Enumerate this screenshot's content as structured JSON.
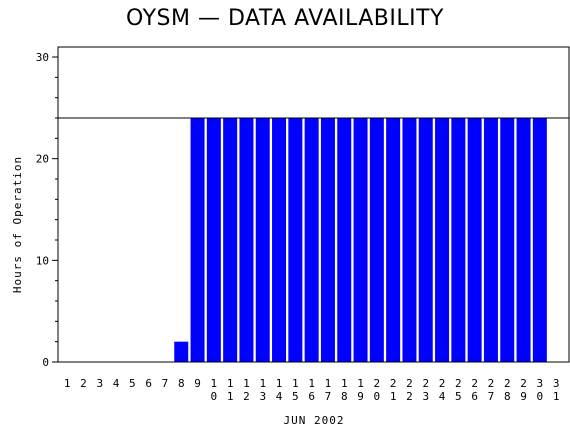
{
  "chart_data": {
    "type": "bar",
    "title": "OYSM — DATA AVAILABILITY",
    "xlabel": "JUN 2002",
    "ylabel": "Hours of Operation",
    "ylim": [
      0,
      30
    ],
    "yticks": [
      0,
      10,
      20,
      30
    ],
    "reference_line": 24,
    "bar_color": "#0000ff",
    "categories": [
      "1",
      "2",
      "3",
      "4",
      "5",
      "6",
      "7",
      "8",
      "9",
      "10",
      "11",
      "12",
      "13",
      "14",
      "15",
      "16",
      "17",
      "18",
      "19",
      "20",
      "21",
      "22",
      "23",
      "24",
      "25",
      "26",
      "27",
      "28",
      "29",
      "30",
      "31"
    ],
    "values": [
      0,
      0,
      0,
      0,
      0,
      0,
      0,
      2,
      24,
      24,
      24,
      24,
      24,
      24,
      24,
      24,
      24,
      24,
      24,
      24,
      24,
      24,
      24,
      24,
      24,
      24,
      24,
      24,
      24,
      24,
      0
    ]
  }
}
